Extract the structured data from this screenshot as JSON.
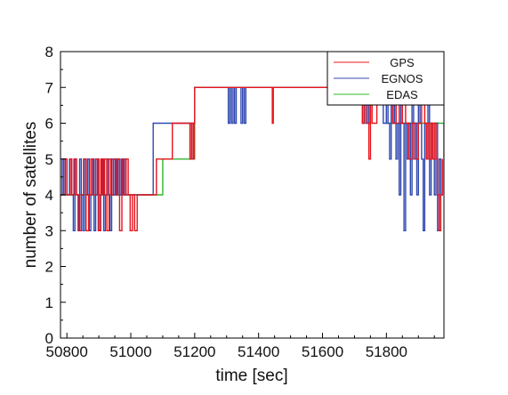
{
  "chart_data": {
    "type": "line",
    "title": "",
    "xlabel": "time [sec]",
    "ylabel": "number of satellites",
    "xlim": [
      50780,
      51980
    ],
    "ylim": [
      0,
      8
    ],
    "x_ticks": [
      "50800",
      "51000",
      "51200",
      "51400",
      "51600",
      "51800"
    ],
    "y_ticks": [
      "0",
      "1",
      "2",
      "3",
      "4",
      "5",
      "6",
      "7",
      "8"
    ],
    "grid": false,
    "legend_position": "top-right",
    "series": [
      {
        "name": "GPS",
        "color": "#e8141c",
        "x": [
          50780,
          50790,
          50800,
          50805,
          50810,
          50815,
          50822,
          50830,
          50838,
          50845,
          50852,
          50860,
          50868,
          50875,
          50882,
          50890,
          50898,
          50906,
          50912,
          50918,
          50925,
          50932,
          50938,
          50945,
          50952,
          50958,
          50965,
          50972,
          50978,
          50985,
          50992,
          50998,
          51005,
          51012,
          51020,
          51040,
          51060,
          51080,
          51090,
          51100,
          51110,
          51130,
          51150,
          51170,
          51185,
          51190,
          51195,
          51198,
          51200,
          51205,
          51210,
          51230,
          51260,
          51290,
          51300,
          51310,
          51320,
          51330,
          51340,
          51350,
          51360,
          51380,
          51400,
          51420,
          51440,
          51443,
          51446,
          51460,
          51500,
          51540,
          51580,
          51620,
          51660,
          51700,
          51720,
          51725,
          51730,
          51740,
          51745,
          51750,
          51755,
          51770,
          51790,
          51810,
          51820,
          51830,
          51840,
          51850,
          51860,
          51870,
          51880,
          51890,
          51900,
          51910,
          51920,
          51925,
          51930,
          51935,
          51940,
          51945,
          51950,
          51955,
          51960,
          51965,
          51970,
          51975
        ],
        "y": [
          4,
          5,
          4,
          4,
          5,
          4,
          5,
          4,
          3,
          4,
          5,
          3,
          4,
          5,
          4,
          5,
          3,
          5,
          4,
          5,
          3,
          5,
          4,
          5,
          4,
          5,
          3,
          5,
          4,
          5,
          4,
          3,
          4,
          3,
          4,
          4,
          4,
          5,
          5,
          5,
          5,
          6,
          6,
          6,
          5,
          6,
          5,
          6,
          7,
          7,
          7,
          7,
          7,
          7,
          7,
          7,
          7,
          7,
          7,
          7,
          7,
          7,
          7,
          7,
          7,
          6,
          7,
          7,
          7,
          7,
          7,
          7,
          7,
          7,
          7,
          6,
          7,
          6,
          5,
          7,
          6,
          7,
          7,
          7,
          6,
          7,
          6,
          7,
          6,
          5,
          6,
          5,
          6,
          7,
          6,
          5,
          6,
          5,
          6,
          5,
          6,
          5,
          4,
          3,
          4,
          5
        ]
      },
      {
        "name": "EGNOS",
        "color": "#3048b0",
        "x": [
          50780,
          50785,
          50790,
          50795,
          50800,
          50808,
          50815,
          50820,
          50825,
          50830,
          50835,
          50840,
          50845,
          50850,
          50855,
          50860,
          50865,
          50870,
          50875,
          50880,
          50885,
          50890,
          50895,
          50900,
          50905,
          50910,
          50915,
          50920,
          50925,
          50930,
          50935,
          50940,
          50945,
          50950,
          50955,
          50960,
          50965,
          50970,
          50975,
          50980,
          50985,
          50990,
          50995,
          51000,
          51020,
          51040,
          51060,
          51070,
          51080,
          51090,
          51100,
          51120,
          51140,
          51160,
          51180,
          51190,
          51195,
          51200,
          51205,
          51210,
          51220,
          51240,
          51260,
          51280,
          51300,
          51305,
          51310,
          51315,
          51320,
          51325,
          51330,
          51340,
          51345,
          51350,
          51355,
          51360,
          51380,
          51400,
          51440,
          51500,
          51560,
          51620,
          51680,
          51720,
          51725,
          51730,
          51735,
          51740,
          51745,
          51750,
          51760,
          51780,
          51790,
          51800,
          51805,
          51810,
          51815,
          51820,
          51825,
          51830,
          51835,
          51840,
          51845,
          51850,
          51855,
          51860,
          51865,
          51870,
          51875,
          51880,
          51885,
          51890,
          51895,
          51900,
          51905,
          51910,
          51915,
          51920,
          51925,
          51930,
          51935,
          51940,
          51945,
          51950,
          51955,
          51960,
          51965,
          51970,
          51975
        ],
        "y": [
          4,
          5,
          4,
          5,
          4,
          5,
          4,
          3,
          5,
          4,
          3,
          5,
          4,
          3,
          5,
          4,
          5,
          3,
          4,
          5,
          3,
          4,
          5,
          3,
          4,
          5,
          3,
          4,
          5,
          4,
          3,
          5,
          4,
          5,
          4,
          5,
          4,
          5,
          4,
          5,
          4,
          4,
          4,
          4,
          4,
          4,
          4,
          6,
          6,
          6,
          6,
          6,
          6,
          6,
          6,
          5,
          6,
          7,
          7,
          7,
          7,
          7,
          7,
          7,
          7,
          6,
          7,
          6,
          7,
          6,
          7,
          7,
          6,
          7,
          6,
          7,
          7,
          7,
          7,
          7,
          7,
          7,
          7,
          7,
          6,
          7,
          6,
          7,
          6,
          7,
          7,
          7,
          6,
          7,
          6,
          5,
          7,
          6,
          7,
          5,
          6,
          4,
          7,
          6,
          3,
          6,
          5,
          6,
          4,
          7,
          5,
          6,
          4,
          7,
          6,
          5,
          3,
          6,
          5,
          7,
          4,
          6,
          5,
          4,
          6,
          3,
          5,
          4,
          5
        ]
      },
      {
        "name": "EDAS",
        "color": "#2eb82e",
        "x": [
          50780,
          51000,
          51100,
          51200,
          51400,
          51600,
          51800,
          51980
        ],
        "y": [
          4,
          4,
          5,
          7,
          7,
          7,
          6,
          4
        ]
      }
    ]
  }
}
